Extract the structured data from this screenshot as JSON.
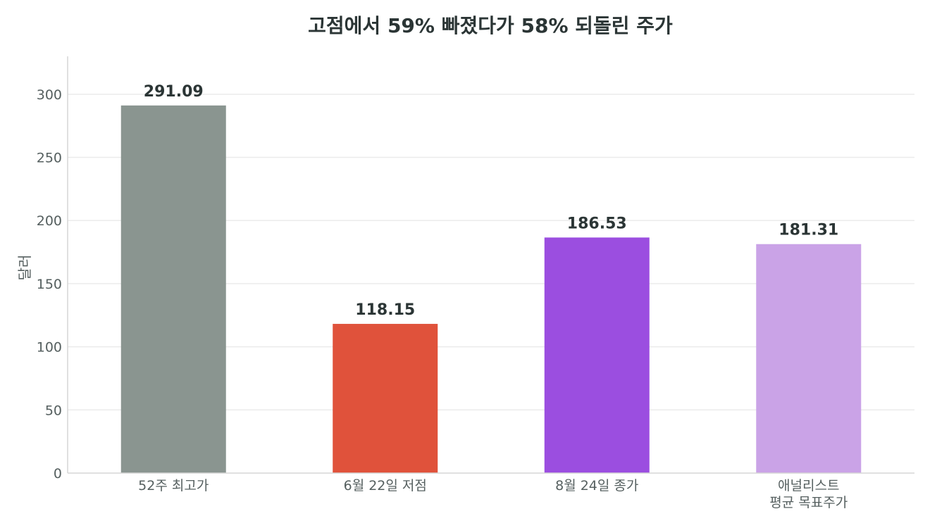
{
  "chart_data": {
    "type": "bar",
    "title": "고점에서 59% 빠졌다가 58% 되돌린 주가",
    "ylabel": "달러",
    "xlabel": "",
    "ylim": [
      0,
      330
    ],
    "yticks": [
      0,
      50,
      100,
      150,
      200,
      250,
      300
    ],
    "grid": true,
    "categories": [
      [
        "52주 최고가"
      ],
      [
        "6월 22일 저점"
      ],
      [
        "8월 24일 종가"
      ],
      [
        "애널리스트",
        "평균 목표주가"
      ]
    ],
    "values": [
      291.09,
      118.15,
      186.53,
      181.31
    ],
    "data_labels": [
      "291.09",
      "118.15",
      "186.53",
      "181.31"
    ],
    "colors": [
      "#8a9590",
      "#e0523b",
      "#9b4ee0",
      "#caa3e7"
    ]
  }
}
